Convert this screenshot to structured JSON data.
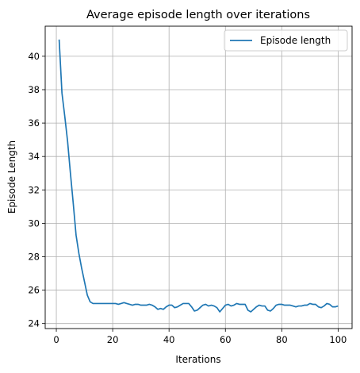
{
  "chart_data": {
    "type": "line",
    "title": "Average episode length over iterations",
    "xlabel": "Iterations",
    "ylabel": "Episode Length",
    "xlim": [
      -3.95,
      104.95
    ],
    "ylim": [
      23.7,
      41.8
    ],
    "xticks": [
      0,
      20,
      40,
      60,
      80,
      100
    ],
    "yticks": [
      24,
      26,
      28,
      30,
      32,
      34,
      36,
      38,
      40
    ],
    "grid": true,
    "legend_position": "top-right",
    "series": [
      {
        "name": "Episode length",
        "color": "#1f77b4",
        "x": [
          1,
          2,
          3,
          4,
          5,
          6,
          7,
          8,
          9,
          10,
          11,
          12,
          13,
          14,
          15,
          16,
          17,
          18,
          19,
          20,
          21,
          22,
          23,
          24,
          25,
          26,
          27,
          28,
          29,
          30,
          31,
          32,
          33,
          34,
          35,
          36,
          37,
          38,
          39,
          40,
          41,
          42,
          43,
          44,
          45,
          46,
          47,
          48,
          49,
          50,
          51,
          52,
          53,
          54,
          55,
          56,
          57,
          58,
          59,
          60,
          61,
          62,
          63,
          64,
          65,
          66,
          67,
          68,
          69,
          70,
          71,
          72,
          73,
          74,
          75,
          76,
          77,
          78,
          79,
          80,
          81,
          82,
          83,
          84,
          85,
          86,
          87,
          88,
          89,
          90,
          91,
          92,
          93,
          94,
          95,
          96,
          97,
          98,
          99,
          100
        ],
        "y": [
          41.0,
          37.8,
          36.4,
          34.9,
          33.0,
          31.2,
          29.3,
          28.2,
          27.3,
          26.5,
          25.7,
          25.3,
          25.2,
          25.2,
          25.2,
          25.2,
          25.2,
          25.2,
          25.2,
          25.2,
          25.2,
          25.15,
          25.2,
          25.25,
          25.2,
          25.15,
          25.1,
          25.15,
          25.15,
          25.1,
          25.1,
          25.1,
          25.15,
          25.1,
          25.0,
          24.85,
          24.9,
          24.85,
          25.0,
          25.1,
          25.1,
          24.95,
          25.0,
          25.1,
          25.2,
          25.2,
          25.2,
          25.0,
          24.75,
          24.8,
          24.95,
          25.1,
          25.15,
          25.05,
          25.1,
          25.05,
          24.95,
          24.7,
          24.9,
          25.1,
          25.15,
          25.05,
          25.1,
          25.2,
          25.15,
          25.15,
          25.15,
          24.8,
          24.7,
          24.85,
          25.0,
          25.1,
          25.05,
          25.05,
          24.8,
          24.75,
          24.9,
          25.1,
          25.15,
          25.15,
          25.1,
          25.1,
          25.1,
          25.05,
          25.0,
          25.05,
          25.05,
          25.1,
          25.1,
          25.2,
          25.15,
          25.15,
          25.0,
          24.95,
          25.05,
          25.2,
          25.15,
          25.0,
          25.0,
          25.05
        ]
      }
    ]
  }
}
